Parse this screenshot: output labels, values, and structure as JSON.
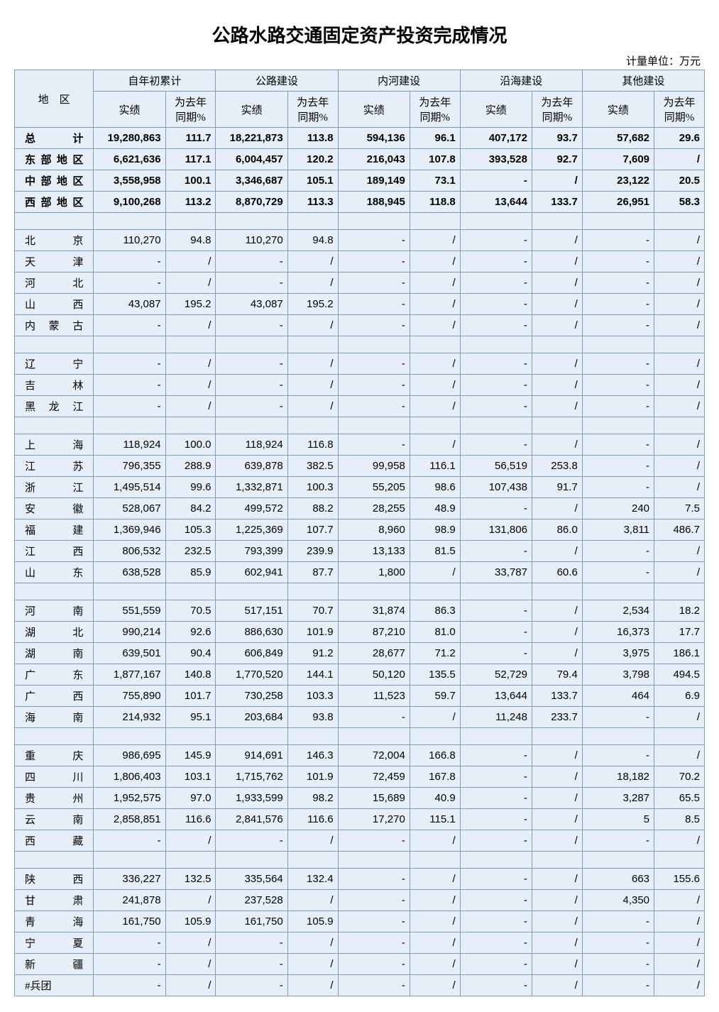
{
  "title": "公路水路交通固定资产投资完成情况",
  "unit_label": "计量单位：万元",
  "header": {
    "region": "地　区",
    "groups": [
      "自年初累计",
      "公路建设",
      "内河建设",
      "沿海建设",
      "其他建设"
    ],
    "sub_val": "实绩",
    "sub_pct": "为去年同期%"
  },
  "colors": {
    "cell_bg": "#e6eef7",
    "border": "#7f9db9"
  },
  "rows": [
    {
      "type": "data",
      "bold": true,
      "region": "总　　计",
      "v": [
        "19,280,863",
        "111.7",
        "18,221,873",
        "113.8",
        "594,136",
        "96.1",
        "407,172",
        "93.7",
        "57,682",
        "29.6"
      ]
    },
    {
      "type": "data",
      "bold": true,
      "region": "东部地区",
      "v": [
        "6,621,636",
        "117.1",
        "6,004,457",
        "120.2",
        "216,043",
        "107.8",
        "393,528",
        "92.7",
        "7,609",
        "/"
      ]
    },
    {
      "type": "data",
      "bold": true,
      "region": "中部地区",
      "v": [
        "3,558,958",
        "100.1",
        "3,346,687",
        "105.1",
        "189,149",
        "73.1",
        "-",
        "/",
        "23,122",
        "20.5"
      ]
    },
    {
      "type": "data",
      "bold": true,
      "region": "西部地区",
      "v": [
        "9,100,268",
        "113.2",
        "8,870,729",
        "113.3",
        "188,945",
        "118.8",
        "13,644",
        "133.7",
        "26,951",
        "58.3"
      ]
    },
    {
      "type": "spacer"
    },
    {
      "type": "data",
      "region": "北　　京",
      "v": [
        "110,270",
        "94.8",
        "110,270",
        "94.8",
        "-",
        "/",
        "-",
        "/",
        "-",
        "/"
      ]
    },
    {
      "type": "data",
      "region": "天　　津",
      "v": [
        "-",
        "/",
        "-",
        "/",
        "-",
        "/",
        "-",
        "/",
        "-",
        "/"
      ]
    },
    {
      "type": "data",
      "region": "河　　北",
      "v": [
        "-",
        "/",
        "-",
        "/",
        "-",
        "/",
        "-",
        "/",
        "-",
        "/"
      ]
    },
    {
      "type": "data",
      "region": "山　　西",
      "v": [
        "43,087",
        "195.2",
        "43,087",
        "195.2",
        "-",
        "/",
        "-",
        "/",
        "-",
        "/"
      ]
    },
    {
      "type": "data",
      "region": "内 蒙 古",
      "v": [
        "-",
        "/",
        "-",
        "/",
        "-",
        "/",
        "-",
        "/",
        "-",
        "/"
      ]
    },
    {
      "type": "spacer"
    },
    {
      "type": "data",
      "region": "辽　　宁",
      "v": [
        "-",
        "/",
        "-",
        "/",
        "-",
        "/",
        "-",
        "/",
        "-",
        "/"
      ]
    },
    {
      "type": "data",
      "region": "吉　　林",
      "v": [
        "-",
        "/",
        "-",
        "/",
        "-",
        "/",
        "-",
        "/",
        "-",
        "/"
      ]
    },
    {
      "type": "data",
      "region": "黑 龙 江",
      "v": [
        "-",
        "/",
        "-",
        "/",
        "-",
        "/",
        "-",
        "/",
        "-",
        "/"
      ]
    },
    {
      "type": "spacer"
    },
    {
      "type": "data",
      "region": "上　　海",
      "v": [
        "118,924",
        "100.0",
        "118,924",
        "116.8",
        "-",
        "/",
        "-",
        "/",
        "-",
        "/"
      ]
    },
    {
      "type": "data",
      "region": "江　　苏",
      "v": [
        "796,355",
        "288.9",
        "639,878",
        "382.5",
        "99,958",
        "116.1",
        "56,519",
        "253.8",
        "-",
        "/"
      ]
    },
    {
      "type": "data",
      "region": "浙　　江",
      "v": [
        "1,495,514",
        "99.6",
        "1,332,871",
        "100.3",
        "55,205",
        "98.6",
        "107,438",
        "91.7",
        "-",
        "/"
      ]
    },
    {
      "type": "data",
      "region": "安　　徽",
      "v": [
        "528,067",
        "84.2",
        "499,572",
        "88.2",
        "28,255",
        "48.9",
        "-",
        "/",
        "240",
        "7.5"
      ]
    },
    {
      "type": "data",
      "region": "福　　建",
      "v": [
        "1,369,946",
        "105.3",
        "1,225,369",
        "107.7",
        "8,960",
        "98.9",
        "131,806",
        "86.0",
        "3,811",
        "486.7"
      ]
    },
    {
      "type": "data",
      "region": "江　　西",
      "v": [
        "806,532",
        "232.5",
        "793,399",
        "239.9",
        "13,133",
        "81.5",
        "-",
        "/",
        "-",
        "/"
      ]
    },
    {
      "type": "data",
      "region": "山　　东",
      "v": [
        "638,528",
        "85.9",
        "602,941",
        "87.7",
        "1,800",
        "/",
        "33,787",
        "60.6",
        "-",
        "/"
      ]
    },
    {
      "type": "spacer"
    },
    {
      "type": "data",
      "region": "河　　南",
      "v": [
        "551,559",
        "70.5",
        "517,151",
        "70.7",
        "31,874",
        "86.3",
        "-",
        "/",
        "2,534",
        "18.2"
      ]
    },
    {
      "type": "data",
      "region": "湖　　北",
      "v": [
        "990,214",
        "92.6",
        "886,630",
        "101.9",
        "87,210",
        "81.0",
        "-",
        "/",
        "16,373",
        "17.7"
      ]
    },
    {
      "type": "data",
      "region": "湖　　南",
      "v": [
        "639,501",
        "90.4",
        "606,849",
        "91.2",
        "28,677",
        "71.2",
        "-",
        "/",
        "3,975",
        "186.1"
      ]
    },
    {
      "type": "data",
      "region": "广　　东",
      "v": [
        "1,877,167",
        "140.8",
        "1,770,520",
        "144.1",
        "50,120",
        "135.5",
        "52,729",
        "79.4",
        "3,798",
        "494.5"
      ]
    },
    {
      "type": "data",
      "region": "广　　西",
      "v": [
        "755,890",
        "101.7",
        "730,258",
        "103.3",
        "11,523",
        "59.7",
        "13,644",
        "133.7",
        "464",
        "6.9"
      ]
    },
    {
      "type": "data",
      "region": "海　　南",
      "v": [
        "214,932",
        "95.1",
        "203,684",
        "93.8",
        "-",
        "/",
        "11,248",
        "233.7",
        "-",
        "/"
      ]
    },
    {
      "type": "spacer"
    },
    {
      "type": "data",
      "region": "重　　庆",
      "v": [
        "986,695",
        "145.9",
        "914,691",
        "146.3",
        "72,004",
        "166.8",
        "-",
        "/",
        "-",
        "/"
      ]
    },
    {
      "type": "data",
      "region": "四　　川",
      "v": [
        "1,806,403",
        "103.1",
        "1,715,762",
        "101.9",
        "72,459",
        "167.8",
        "-",
        "/",
        "18,182",
        "70.2"
      ]
    },
    {
      "type": "data",
      "region": "贵　　州",
      "v": [
        "1,952,575",
        "97.0",
        "1,933,599",
        "98.2",
        "15,689",
        "40.9",
        "-",
        "/",
        "3,287",
        "65.5"
      ]
    },
    {
      "type": "data",
      "region": "云　　南",
      "v": [
        "2,858,851",
        "116.6",
        "2,841,576",
        "116.6",
        "17,270",
        "115.1",
        "-",
        "/",
        "5",
        "8.5"
      ]
    },
    {
      "type": "data",
      "region": "西　　藏",
      "v": [
        "-",
        "/",
        "-",
        "/",
        "-",
        "/",
        "-",
        "/",
        "-",
        "/"
      ]
    },
    {
      "type": "spacer"
    },
    {
      "type": "data",
      "region": "陕　　西",
      "v": [
        "336,227",
        "132.5",
        "335,564",
        "132.4",
        "-",
        "/",
        "-",
        "/",
        "663",
        "155.6"
      ]
    },
    {
      "type": "data",
      "region": "甘　　肃",
      "v": [
        "241,878",
        "/",
        "237,528",
        "/",
        "-",
        "/",
        "-",
        "/",
        "4,350",
        "/"
      ]
    },
    {
      "type": "data",
      "region": "青　　海",
      "v": [
        "161,750",
        "105.9",
        "161,750",
        "105.9",
        "-",
        "/",
        "-",
        "/",
        "-",
        "/"
      ]
    },
    {
      "type": "data",
      "region": "宁　　夏",
      "v": [
        "-",
        "/",
        "-",
        "/",
        "-",
        "/",
        "-",
        "/",
        "-",
        "/"
      ]
    },
    {
      "type": "data",
      "region": "新　　疆",
      "v": [
        "-",
        "/",
        "-",
        "/",
        "-",
        "/",
        "-",
        "/",
        "-",
        "/"
      ]
    },
    {
      "type": "data",
      "region": "#兵团",
      "v": [
        "-",
        "/",
        "-",
        "/",
        "-",
        "/",
        "-",
        "/",
        "-",
        "/"
      ],
      "no_justify": true
    }
  ]
}
